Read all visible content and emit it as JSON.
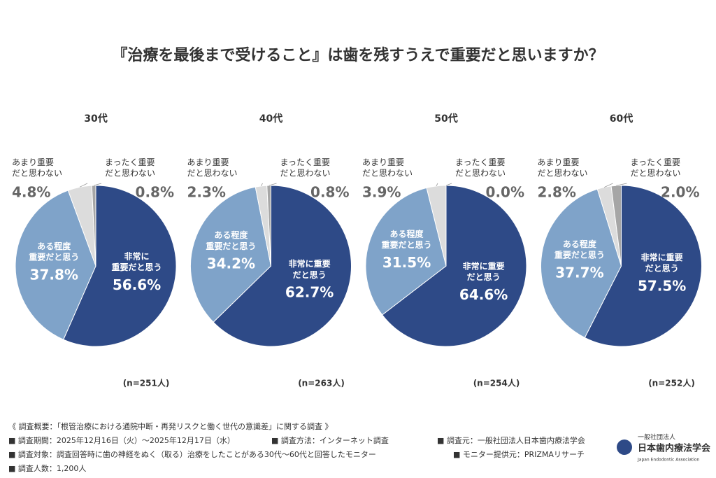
{
  "title": "『治療を最後まで受けること』は歯を残すうえで重要だと思いますか？",
  "chart_data": [
    {
      "type": "pie",
      "title": "30代",
      "note": "(n=251人)",
      "categories": [
        "非常に\n重要だと思う",
        "ある程度\n重要だと思う",
        "あまり重要\nだと思わない",
        "まったく重要\nだと思わない"
      ],
      "values": [
        56.6,
        37.8,
        4.8,
        0.8
      ],
      "value_labels": [
        "56.6%",
        "37.8%",
        "4.8%",
        "0.8%"
      ],
      "colors": [
        "#2e4a87",
        "#7fa3c9",
        "#dcdcdc",
        "#a6a6a6"
      ]
    },
    {
      "type": "pie",
      "title": "40代",
      "note": "(n=263人)",
      "categories": [
        "非常に重要\nだと思う",
        "ある程度\n重要だと思う",
        "あまり重要\nだと思わない",
        "まったく重要\nだと思わない"
      ],
      "values": [
        62.7,
        34.2,
        2.3,
        0.8
      ],
      "value_labels": [
        "62.7%",
        "34.2%",
        "2.3%",
        "0.8%"
      ],
      "colors": [
        "#2e4a87",
        "#7fa3c9",
        "#dcdcdc",
        "#a6a6a6"
      ]
    },
    {
      "type": "pie",
      "title": "50代",
      "note": "(n=254人)",
      "categories": [
        "非常に重要\nだと思う",
        "ある程度\n重要だと思う",
        "あまり重要\nだと思わない",
        "まったく重要\nだと思わない"
      ],
      "values": [
        64.6,
        31.5,
        3.9,
        0.0
      ],
      "value_labels": [
        "64.6%",
        "31.5%",
        "3.9%",
        "0.0%"
      ],
      "colors": [
        "#2e4a87",
        "#7fa3c9",
        "#dcdcdc",
        "#a6a6a6"
      ]
    },
    {
      "type": "pie",
      "title": "60代",
      "note": "(n=252人)",
      "categories": [
        "非常に重要\nだと思う",
        "ある程度\n重要だと思う",
        "あまり重要\nだと思わない",
        "まったく重要\nだと思わない"
      ],
      "values": [
        57.5,
        37.7,
        2.8,
        2.0
      ],
      "value_labels": [
        "57.5%",
        "37.7%",
        "2.8%",
        "2.0%"
      ],
      "colors": [
        "#2e4a87",
        "#7fa3c9",
        "#dcdcdc",
        "#a6a6a6"
      ]
    }
  ],
  "footer": {
    "heading": "《 調査概要：「根管治療における通院中断・再発リスクと働く世代の意識差」に関する調査 》",
    "items": [
      "■ 調査期間：2025年12月16日（火）〜2025年12月17日（水）",
      "■ 調査方法：インターネット調査",
      "■ 調査元：一般社団法人日本歯内療法学会",
      "■ 調査対象：調査回答時に歯の神経をぬく（取る）治療をしたことがある30代〜60代と回答したモニター",
      "■ モニター提供元：PRIZMAリサーチ",
      "■ 調査人数：1,200人"
    ]
  },
  "logo": {
    "line1": "一般社団法人",
    "line2": "日本歯内療法学会",
    "line3": "Japan Endodontic Association"
  }
}
